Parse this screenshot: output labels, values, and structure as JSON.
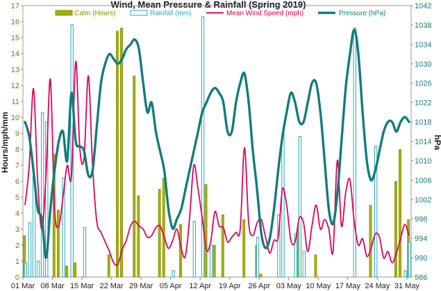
{
  "chart_data": {
    "type": "bar+line",
    "title": "Wind, Mean Pressure & Rainfall (Spring 2019)",
    "ylabel_left": "Hours/mph/mm",
    "ylabel_right": "hPa",
    "ylim_left": [
      0,
      17
    ],
    "ylim_right": [
      986,
      1042
    ],
    "yticks_left": [
      "0",
      "1",
      "2",
      "3",
      "4",
      "5",
      "6",
      "7",
      "8",
      "9",
      "10",
      "11",
      "12",
      "13",
      "14",
      "15",
      "16",
      "17"
    ],
    "yticks_right": [
      "986",
      "990",
      "994",
      "998",
      "1002",
      "1006",
      "1010",
      "1014",
      "1018",
      "1022",
      "1026",
      "1030",
      "1034",
      "1038",
      "1042"
    ],
    "x_tick_labels": [
      "01 Mar",
      "08 Mar",
      "15 Mar",
      "22 Mar",
      "29 Mar",
      "05 Apr",
      "12 Apr",
      "19 Apr",
      "26 Apr",
      "03 May",
      "10 May",
      "17 May",
      "24 May",
      "31 May"
    ],
    "days": 92,
    "colors": {
      "calm": "#a8b000",
      "calm_edge": "#6f7a00",
      "rain_edge": "#2aa6b8",
      "wind": "#e0005a",
      "pressure": "#127c7c",
      "grid": "#d7d7d7",
      "legend_calm": "#8a9100",
      "legend_rain": "#2aa6b8",
      "legend_wind": "#d0004a",
      "legend_pressure": "#127c7c"
    },
    "series": [
      {
        "name": "Calm (Hours)",
        "type": "bar",
        "axis": "left",
        "values": [
          2.6,
          0,
          0,
          0,
          0,
          0,
          0,
          7.7,
          4.2,
          0,
          0.7,
          0,
          0.9,
          0,
          0,
          0,
          0,
          0,
          0,
          0,
          1.4,
          0,
          15.4,
          15.6,
          0,
          0,
          12.6,
          5.1,
          0,
          0,
          0,
          0,
          5.5,
          6.2,
          0,
          0,
          0,
          3.3,
          0,
          0,
          0,
          0,
          0,
          5.8,
          0,
          2.0,
          0,
          3.9,
          0,
          0,
          0,
          0,
          3.6,
          0,
          0,
          2.0,
          0.2,
          0,
          0,
          0,
          0,
          0,
          0,
          0,
          0,
          3.1,
          0,
          0,
          0,
          1.4,
          0,
          0,
          0,
          0,
          0,
          0,
          0,
          0,
          0,
          0,
          0,
          0,
          4.5,
          0,
          0,
          0,
          0,
          0,
          6.0,
          8.0,
          0,
          3.6
        ],
        "approx_note": ""
      },
      {
        "name": "Rainfall (mm)",
        "type": "bar",
        "axis": "left",
        "values": [
          0.9,
          3.4,
          6.3,
          1.0,
          10.3,
          9.7,
          0,
          0,
          0,
          6.2,
          0,
          15.8,
          0,
          0,
          3.1,
          0,
          0,
          0,
          0,
          0,
          0,
          0,
          0,
          0,
          0,
          0,
          0,
          0,
          0,
          0,
          0,
          0,
          0,
          0,
          0,
          0.4,
          0,
          0,
          0,
          0,
          3.5,
          0,
          16.3,
          0,
          2.0,
          0,
          0,
          0,
          0,
          0,
          0,
          0,
          0,
          0,
          0,
          2.5,
          0,
          0,
          0,
          0,
          3.9,
          9.0,
          0,
          0,
          2.7,
          8.8,
          1.6,
          0,
          0,
          0,
          0,
          0,
          0,
          0,
          0,
          0,
          0,
          0,
          15.6,
          0,
          0,
          0,
          0,
          8.2,
          0,
          0,
          0,
          0,
          0,
          0,
          0.4,
          2.2
        ]
      },
      {
        "name": "Mean Wind Speed (mph)",
        "type": "line",
        "axis": "left",
        "values": [
          4.5,
          7.0,
          11.8,
          6.0,
          3.0,
          6.5,
          12.4,
          4.3,
          3.2,
          5.0,
          7.0,
          6.3,
          13.5,
          8.0,
          7.5,
          12.6,
          7.0,
          3.5,
          2.8,
          2.2,
          1.6,
          0.9,
          0.8,
          1.7,
          2.3,
          3.2,
          3.5,
          3.2,
          3.0,
          2.5,
          2.6,
          3.1,
          3.2,
          2.5,
          1.8,
          2.3,
          3.0,
          1.8,
          1.3,
          3.7,
          7.0,
          5.5,
          3.7,
          1.7,
          2.2,
          4.1,
          3.2,
          3.1,
          2.2,
          2.5,
          2.8,
          3.0,
          8.1,
          3.4,
          2.6,
          3.4,
          3.6,
          2.5,
          1.5,
          2.3,
          2.5,
          5.5,
          4.5,
          2.3,
          2.2,
          3.7,
          3.4,
          1.6,
          3.2,
          4.5,
          3.0,
          3.6,
          3.0,
          1.6,
          7.3,
          3.2,
          5.3,
          6.1,
          3.5,
          2.0,
          2.4,
          1.3,
          1.8,
          2.7,
          2.5,
          1.2,
          1.6,
          0.9,
          1.5,
          2.4,
          3.3,
          2.6
        ],
        "approx_note": ""
      },
      {
        "name": "Pressure (hPa)",
        "type": "line",
        "axis": "right",
        "values": [
          1018.0,
          1015.0,
          1008.0,
          1000.0,
          998.0,
          990.0,
          1000.0,
          1008.0,
          1014.0,
          1016.0,
          1010.0,
          1024.0,
          1014.0,
          1013.0,
          1012.0,
          1007.0,
          1008.0,
          1017.0,
          1026.0,
          1030.0,
          1032.0,
          1031.0,
          1030.0,
          1031.0,
          1033.0,
          1034.0,
          1035.0,
          1033.0,
          1026.0,
          1020.0,
          1022.0,
          1016.0,
          1012.0,
          1008.0,
          1000.0,
          996.0,
          998.0,
          1000.0,
          1004.0,
          1008.0,
          1012.0,
          1016.0,
          1020.0,
          1022.0,
          1024.0,
          1025.0,
          1024.0,
          1022.0,
          1016.0,
          1016.0,
          1022.0,
          1026.0,
          1028.0,
          1022.0,
          1012.0,
          1004.0,
          995.0,
          992.0,
          994.0,
          1000.0,
          1008.0,
          1015.0,
          1020.0,
          1024.0,
          1022.0,
          1018.0,
          1018.0,
          1022.0,
          1026.0,
          1026.0,
          1020.0,
          1010.0,
          1000.0,
          997.0,
          1003.0,
          1014.0,
          1025.0,
          1032.0,
          1037.0,
          1032.0,
          1020.0,
          1010.0,
          1006.0,
          1008.0,
          1012.0,
          1016.0,
          1018.0,
          1018.0,
          1016.0,
          1018.0,
          1019.0,
          1018.0
        ],
        "approx_note": ""
      }
    ],
    "legend": {
      "placement": "top",
      "entries": [
        "Calm (Hours)",
        "Rainfall (mm)",
        "Mean Wind Speed (mph)",
        "Pressure (hPa)"
      ]
    },
    "grid": false
  }
}
